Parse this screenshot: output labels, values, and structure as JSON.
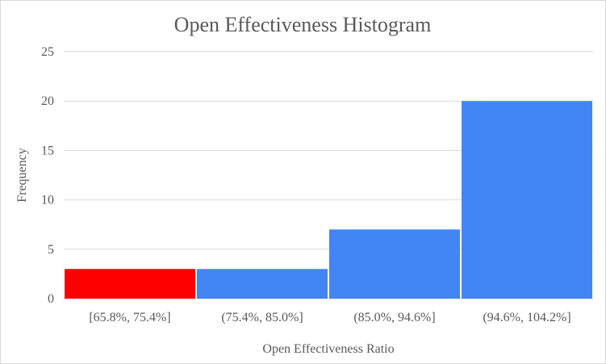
{
  "chart_data": {
    "type": "bar",
    "title": "Open Effectiveness Histogram",
    "xlabel": "Open Effectiveness Ratio",
    "ylabel": "Frequency",
    "categories": [
      "[65.8%, 75.4%]",
      "(75.4%, 85.0%]",
      "(85.0%, 94.6%]",
      "(94.6%, 104.2%]"
    ],
    "values": [
      3,
      3,
      7,
      20
    ],
    "bar_colors": [
      "#ff0000",
      "#4285f4",
      "#4285f4",
      "#4285f4"
    ],
    "ylim": [
      0,
      25
    ],
    "yticks": [
      0,
      5,
      10,
      15,
      20,
      25
    ],
    "grid": true,
    "legend": "none"
  },
  "colors": {
    "highlight": "#ff0000",
    "bar": "#4285f4",
    "grid": "#d9d9d9",
    "text": "#595959"
  }
}
